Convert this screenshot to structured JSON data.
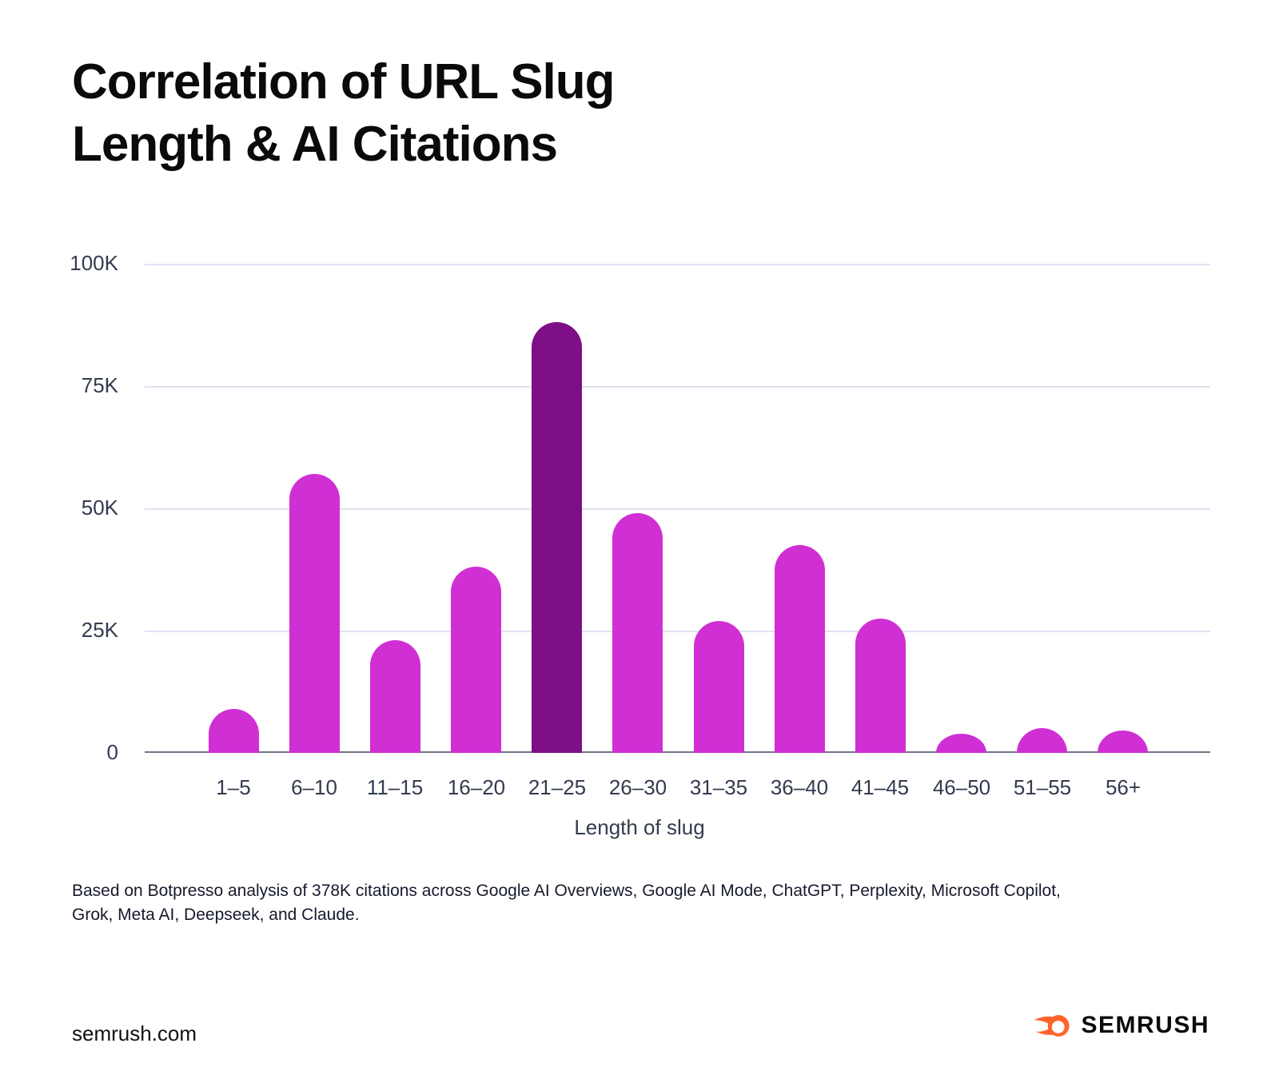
{
  "page": {
    "title": "Correlation of URL Slug\nLength & AI Citations",
    "footnote": "Based on Botpresso analysis of 378K citations across Google AI Overviews, Google AI Mode, ChatGPT, Perplexity, Microsoft Copilot,\nGrok, Meta AI, Deepseek, and Claude."
  },
  "chart_data": {
    "type": "bar",
    "title": "Correlation of URL Slug Length & AI Citations",
    "categories": [
      "1–5",
      "6–10",
      "11–15",
      "16–20",
      "21–25",
      "26–30",
      "31–35",
      "36–40",
      "41–45",
      "46–50",
      "51–55",
      "56+"
    ],
    "values": [
      9000,
      57000,
      23000,
      38000,
      88000,
      49000,
      27000,
      42500,
      27500,
      4000,
      5000,
      4500
    ],
    "highlight_index": 4,
    "highlight_category": "21–25",
    "xlabel": "Length of slug",
    "ylabel": "",
    "ylim": [
      0,
      100000
    ],
    "ytick_values": [
      100000,
      75000,
      50000,
      25000,
      0
    ],
    "ytick_labels": [
      "100K",
      "75K",
      "50K",
      "25K",
      "0"
    ],
    "grid": true,
    "legend": false,
    "bar_color": "#D02FD4",
    "highlight_color": "#7E0F86"
  },
  "colors": {
    "grid": "#DEE3F2",
    "axis_line": "#70798A",
    "tick_text": "#333B4E",
    "brand_orange": "#FF642D"
  },
  "footer": {
    "site": "semrush.com",
    "brand": "SEMRUSH"
  }
}
